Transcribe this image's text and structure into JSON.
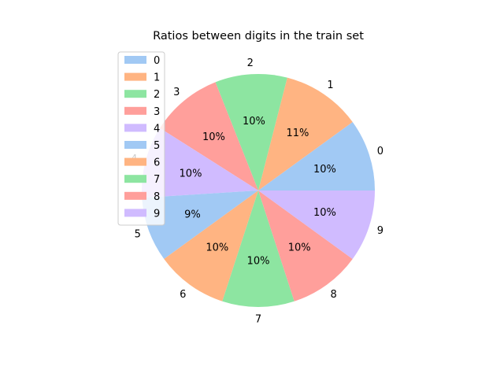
{
  "chart_data": {
    "type": "pie",
    "title": "Ratios between digits in the train set",
    "categories": [
      "0",
      "1",
      "2",
      "3",
      "4",
      "5",
      "6",
      "7",
      "8",
      "9"
    ],
    "values": [
      10,
      11,
      10,
      10,
      10,
      9,
      10,
      10,
      10,
      10
    ],
    "value_labels": [
      "10%",
      "11%",
      "10%",
      "10%",
      "10%",
      "9%",
      "10%",
      "10%",
      "10%",
      "10%"
    ],
    "colors": [
      "#a1c9f4",
      "#ffb482",
      "#8de5a1",
      "#ff9f9b",
      "#d0bbff",
      "#a1c9f4",
      "#ffb482",
      "#8de5a1",
      "#ff9f9b",
      "#d0bbff"
    ],
    "legend": {
      "placement": "upper-left",
      "entries": [
        "0",
        "1",
        "2",
        "3",
        "4",
        "5",
        "6",
        "7",
        "8",
        "9"
      ]
    },
    "start_angle_deg": 0,
    "direction": "counterclockwise"
  }
}
